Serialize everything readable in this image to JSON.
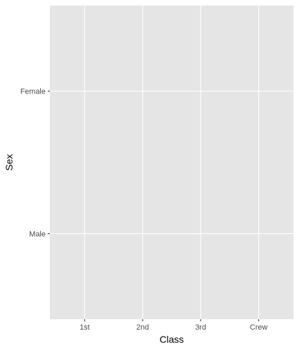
{
  "chart_data": {
    "type": "scatter",
    "title": "",
    "xlabel": "Class",
    "ylabel": "Sex",
    "x_categories": [
      "1st",
      "2nd",
      "3rd",
      "Crew"
    ],
    "y_categories": [
      "Female",
      "Male"
    ],
    "points": [],
    "grid": true,
    "legend": "none",
    "colors": {
      "panel_background": "#e5e5e5",
      "grid_major": "#ffffff",
      "tick_text": "#4d4d4d",
      "tick_mark": "#333333",
      "axis_title": "#000000"
    }
  }
}
